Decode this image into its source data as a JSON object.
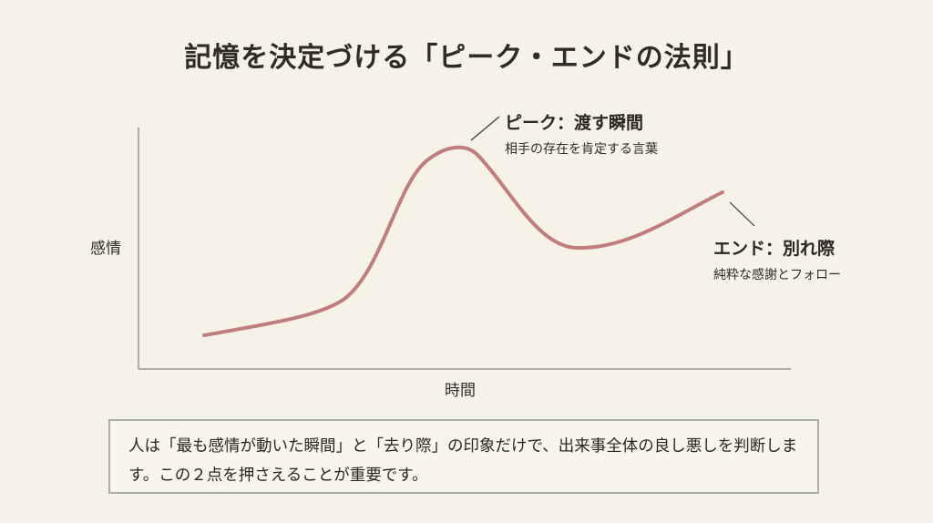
{
  "title": "記憶を決定づける「ピーク・エンドの法則」",
  "chart": {
    "ylabel": "感情",
    "xlabel": "時間",
    "peak": {
      "label": "ピーク：渡す瞬間",
      "sublabel": "相手の存在を肯定する言葉"
    },
    "end": {
      "label": "エンド：別れ際",
      "sublabel": "純粋な感謝とフォロー"
    },
    "colors": {
      "curve": "#c07d7d",
      "axis": "#a9b1a6",
      "background": "#f6f2e7"
    }
  },
  "note": {
    "text": "人は「最も感情が動いた瞬間」と「去り際」の印象だけで、出来事全体の良し悪しを判断します。この２点を押さえることが重要です。"
  }
}
